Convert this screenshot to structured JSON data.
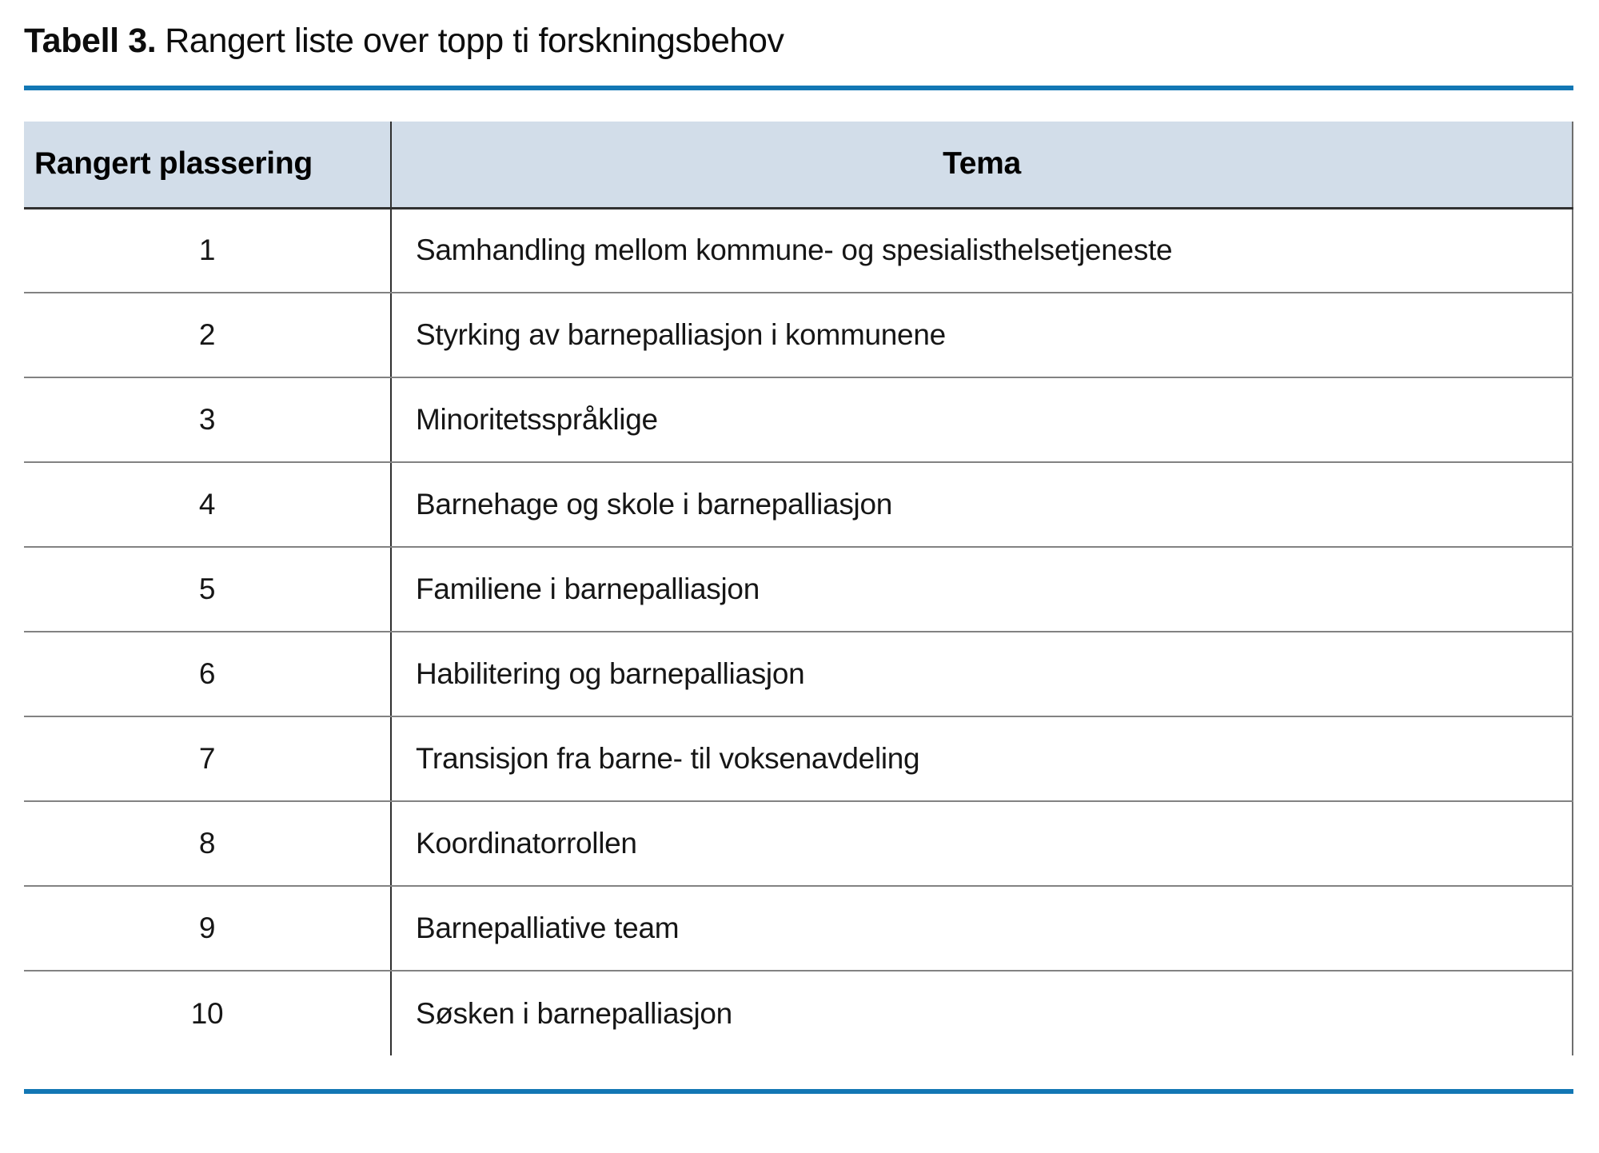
{
  "colors": {
    "accent": "#1277B4",
    "header-bg": "#D2DDE9",
    "header-rule": "#313131",
    "row-rule": "#828282",
    "divider": "#2F2F2F",
    "right-rule": "#6E6E6E"
  },
  "caption": {
    "label": "Tabell 3.",
    "text": "Rangert liste over topp ti forskningsbehov"
  },
  "table": {
    "headers": {
      "rank": "Rangert plassering",
      "tema": "Tema"
    },
    "rows": [
      {
        "rank": "1",
        "tema": "Samhandling mellom kommune- og spesialisthelsetjeneste"
      },
      {
        "rank": "2",
        "tema": "Styrking av barnepalliasjon i kommunene"
      },
      {
        "rank": "3",
        "tema": "Minoritetsspråklige"
      },
      {
        "rank": "4",
        "tema": "Barnehage og skole i barnepalliasjon"
      },
      {
        "rank": "5",
        "tema": "Familiene i barnepalliasjon"
      },
      {
        "rank": "6",
        "tema": "Habilitering og barnepalliasjon"
      },
      {
        "rank": "7",
        "tema": "Transisjon fra barne- til voksenavdeling"
      },
      {
        "rank": "8",
        "tema": "Koordinatorrollen"
      },
      {
        "rank": "9",
        "tema": "Barnepalliative team"
      },
      {
        "rank": "10",
        "tema": "Søsken i barnepalliasjon"
      }
    ]
  }
}
